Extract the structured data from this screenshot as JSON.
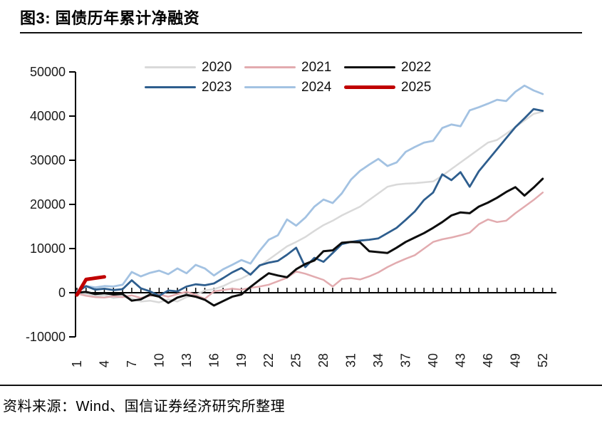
{
  "header": {
    "title": "图3: 国债历年累计净融资"
  },
  "footer": {
    "source": "资料来源：Wind、国信证券经济研究所整理"
  },
  "chart_data": {
    "type": "line",
    "title": "图3: 国债历年累计净融资",
    "xlabel": "",
    "ylabel": "",
    "x_ticks": [
      1,
      4,
      7,
      10,
      13,
      16,
      19,
      22,
      25,
      28,
      31,
      34,
      37,
      40,
      43,
      46,
      49,
      52
    ],
    "x_range": [
      1,
      53
    ],
    "y_ticks": [
      -10000,
      0,
      10000,
      20000,
      30000,
      40000,
      50000
    ],
    "ylim": [
      -10000,
      50000
    ],
    "grid": false,
    "legend_position": "top-center",
    "axis_color": "#000000",
    "series": [
      {
        "name": "2020",
        "color": "#d9d9d9",
        "width": 2.5,
        "values": [
          0,
          -300,
          -800,
          -500,
          -1200,
          -900,
          -1300,
          -2000,
          -1800,
          -2200,
          -1500,
          -2000,
          -1000,
          -500,
          500,
          800,
          1500,
          2500,
          3200,
          4300,
          6000,
          7500,
          9000,
          10500,
          11500,
          12600,
          14000,
          15300,
          16300,
          17500,
          18500,
          19500,
          21000,
          22500,
          24000,
          24500,
          24700,
          24800,
          25000,
          25200,
          26500,
          28000,
          29500,
          31000,
          32500,
          34000,
          34600,
          36000,
          37500,
          39000,
          40500,
          41000
        ]
      },
      {
        "name": "2021",
        "color": "#e2abaf",
        "width": 2.5,
        "values": [
          -200,
          -700,
          -1000,
          -1100,
          -800,
          -1000,
          -600,
          -1200,
          -700,
          -400,
          -900,
          -300,
          200,
          -500,
          -1400,
          300,
          600,
          900,
          700,
          1100,
          1400,
          1800,
          2600,
          3400,
          4800,
          4300,
          3600,
          2900,
          1400,
          3100,
          3300,
          3000,
          3700,
          4600,
          5800,
          6800,
          7700,
          8500,
          10000,
          11500,
          12100,
          12500,
          13000,
          13600,
          15500,
          16600,
          16000,
          16300,
          18000,
          19500,
          21000,
          22700
        ]
      },
      {
        "name": "2022",
        "color": "#0d0d0d",
        "width": 3,
        "values": [
          0,
          200,
          -300,
          -100,
          -400,
          -300,
          -1800,
          -1500,
          -400,
          -900,
          -2300,
          -1100,
          -500,
          -900,
          -1600,
          -2900,
          -1900,
          -900,
          -400,
          1300,
          2900,
          4400,
          3900,
          3500,
          5300,
          6500,
          7300,
          9400,
          9600,
          11300,
          11500,
          11400,
          9400,
          9200,
          9000,
          10200,
          11500,
          12500,
          13500,
          14700,
          16000,
          17500,
          18200,
          18000,
          19500,
          20400,
          21500,
          22800,
          23900,
          22000,
          23800,
          25800
        ]
      },
      {
        "name": "2023",
        "color": "#2e5e8e",
        "width": 2.8,
        "values": [
          100,
          1500,
          700,
          900,
          600,
          800,
          2800,
          1000,
          300,
          -700,
          500,
          300,
          1400,
          1900,
          1700,
          2100,
          3300,
          4600,
          5600,
          4100,
          6200,
          6800,
          7200,
          8600,
          10200,
          5800,
          7900,
          7000,
          9000,
          11000,
          11500,
          11800,
          12000,
          12300,
          13500,
          14700,
          16500,
          18400,
          21000,
          22700,
          26800,
          25500,
          27300,
          24000,
          27500,
          30000,
          32500,
          35000,
          37500,
          39500,
          41600,
          41200
        ]
      },
      {
        "name": "2024",
        "color": "#a3c2e2",
        "width": 2.8,
        "values": [
          300,
          1500,
          1200,
          1500,
          1400,
          1800,
          4700,
          3700,
          4500,
          5000,
          4200,
          5500,
          4400,
          6300,
          5500,
          3900,
          5300,
          6300,
          7400,
          6600,
          9500,
          12000,
          13000,
          16600,
          15200,
          17000,
          19500,
          21100,
          20300,
          22500,
          25600,
          27600,
          29000,
          30300,
          28700,
          29500,
          31900,
          33000,
          34000,
          34400,
          37300,
          38100,
          37700,
          41300,
          42000,
          42800,
          43700,
          43400,
          45500,
          46900,
          45800,
          45000
        ]
      },
      {
        "name": "2025",
        "color": "#c00000",
        "width": 5,
        "values": [
          -500,
          3000,
          3300,
          3600
        ]
      }
    ]
  }
}
